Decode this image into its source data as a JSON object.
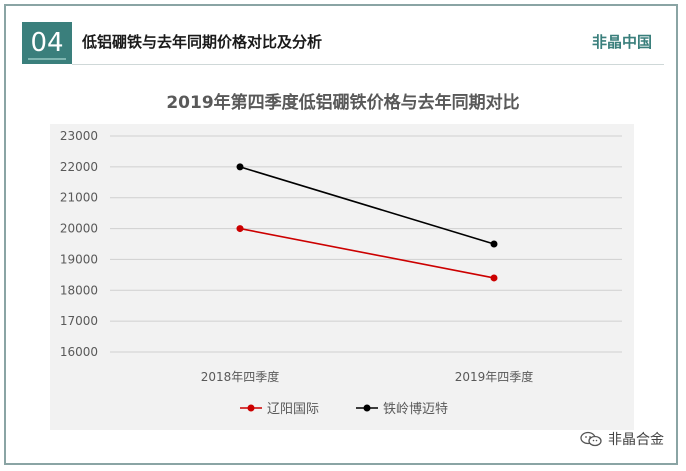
{
  "header": {
    "number": "04",
    "title": "低铝硼铁与去年同期价格对比及分析",
    "brand": "非晶中国"
  },
  "watermark": {
    "text": "非晶合金",
    "icon": "wechat-icon"
  },
  "colors": {
    "accent": "#3a7f7c",
    "series_red": "#cc0000",
    "series_black": "#000000",
    "plot_bg": "#f2f2f2"
  },
  "chart_data": {
    "type": "line",
    "title": "2019年第四季度低铝硼铁价格与去年同期对比",
    "categories": [
      "2018年四季度",
      "2019年四季度"
    ],
    "series": [
      {
        "name": "辽阳国际",
        "values": [
          20000,
          18400
        ],
        "color": "#cc0000"
      },
      {
        "name": "铁岭博迈特",
        "values": [
          22000,
          19500
        ],
        "color": "#000000"
      }
    ],
    "ylim": [
      16000,
      23000
    ],
    "yticks": [
      "16000",
      "17000",
      "18000",
      "19000",
      "20000",
      "21000",
      "22000",
      "23000"
    ],
    "grid": true,
    "legend": "bottom",
    "xlabel": "",
    "ylabel": ""
  }
}
